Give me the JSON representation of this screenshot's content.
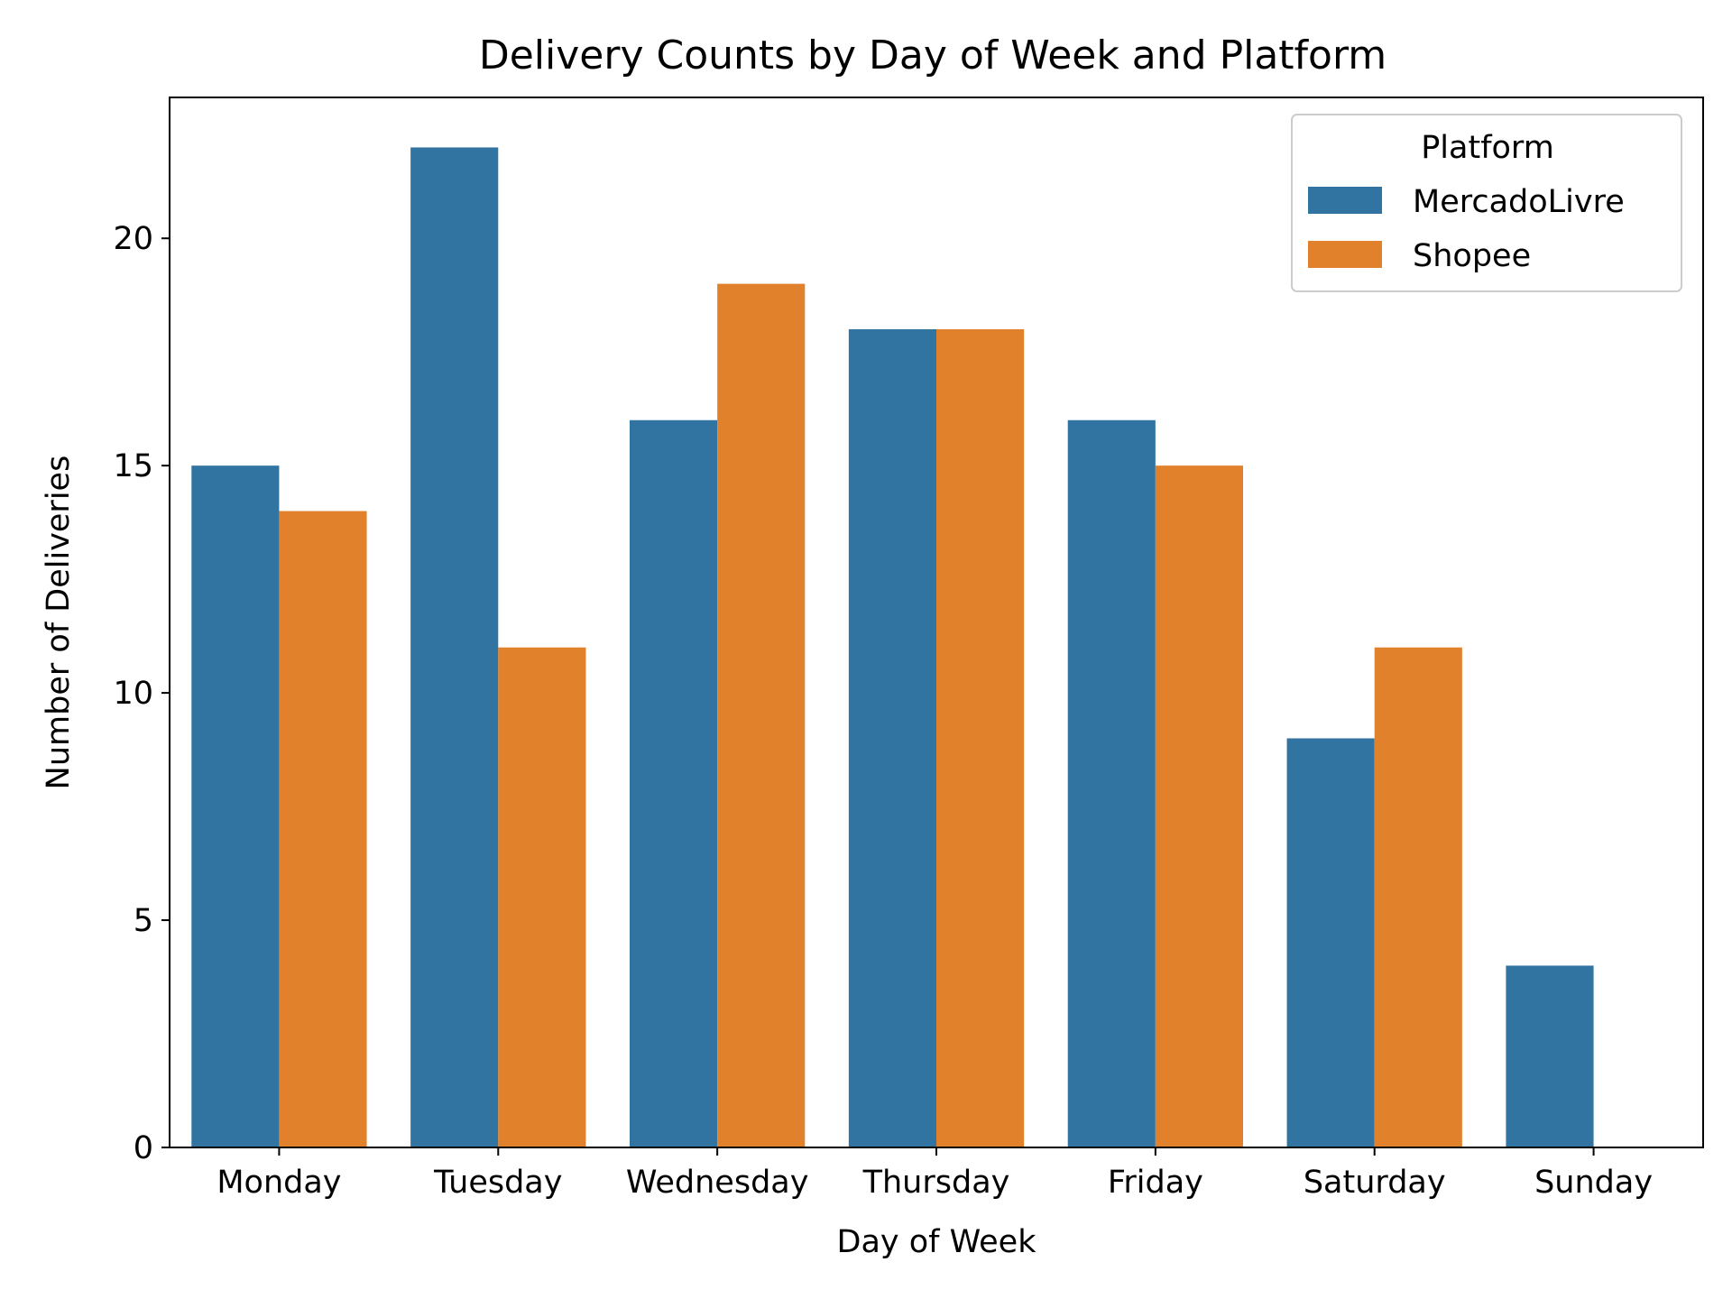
{
  "chart_data": {
    "type": "bar",
    "title": "Delivery Counts by Day of Week and Platform",
    "xlabel": "Day of Week",
    "ylabel": "Number of Deliveries",
    "categories": [
      "Monday",
      "Tuesday",
      "Wednesday",
      "Thursday",
      "Friday",
      "Saturday",
      "Sunday"
    ],
    "series": [
      {
        "name": "MercadoLivre",
        "color": "#3274a1",
        "values": [
          15,
          22,
          16,
          18,
          16,
          9,
          4
        ]
      },
      {
        "name": "Shopee",
        "color": "#e1812c",
        "values": [
          14,
          11,
          19,
          18,
          15,
          11,
          0
        ]
      }
    ],
    "ylim": [
      0,
      23.1
    ],
    "yticks": [
      0,
      5,
      10,
      15,
      20
    ],
    "grid": false,
    "legend": {
      "title": "Platform",
      "placement": "top-right"
    }
  }
}
